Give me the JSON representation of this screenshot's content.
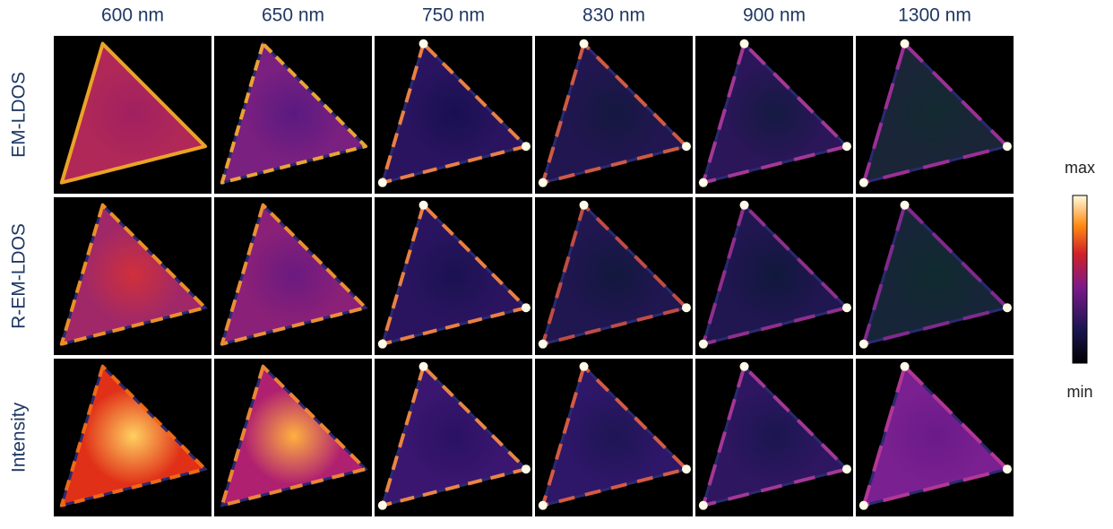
{
  "columns": [
    "600 nm",
    "650 nm",
    "750 nm",
    "830 nm",
    "900 nm",
    "1300 nm"
  ],
  "rows": [
    "EM-LDOS",
    "R-EM-LDOS",
    "Intensity"
  ],
  "colorbar": {
    "max": "max",
    "min": "min"
  }
}
